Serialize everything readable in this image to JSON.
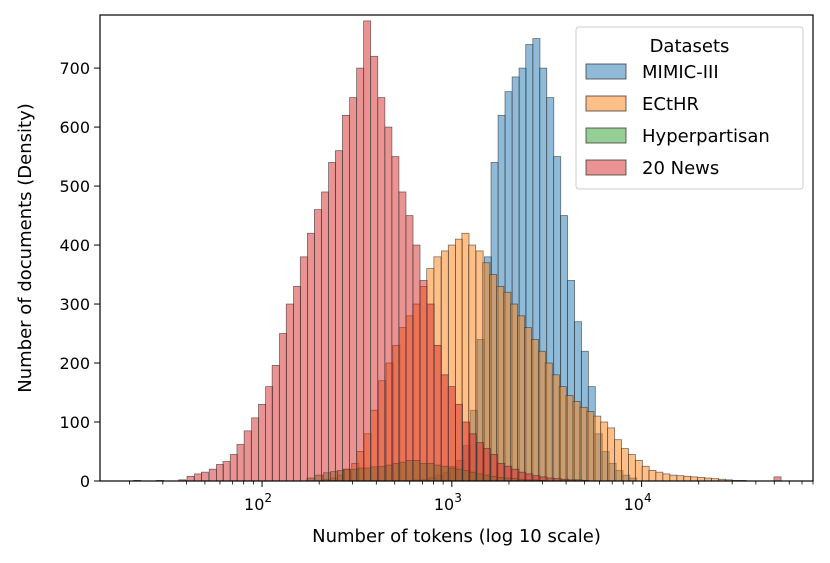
{
  "chart_data": {
    "type": "bar",
    "subtype": "overlapping-histogram",
    "xscale": "log",
    "xlabel": "Number of tokens (log 10 scale)",
    "ylabel": "Number of documents (Density)",
    "xlim": [
      14,
      80000
    ],
    "ylim": [
      0,
      790
    ],
    "yticks": [
      0,
      100,
      200,
      300,
      400,
      500,
      600,
      700
    ],
    "xticks": [
      100,
      1000,
      10000
    ],
    "xtick_labels": [
      {
        "base": "10",
        "exp": "2"
      },
      {
        "base": "10",
        "exp": "3"
      },
      {
        "base": "10",
        "exp": "4"
      }
    ],
    "grid": false,
    "legend": {
      "title": "Datasets",
      "placement": "top-right"
    },
    "series": [
      {
        "name": "MIMIC-III",
        "color": "#1f77b4",
        "bins": [
          [
            660,
            2
          ],
          [
            730,
            3
          ],
          [
            790,
            6
          ],
          [
            860,
            10
          ],
          [
            940,
            15
          ],
          [
            1020,
            25
          ],
          [
            1110,
            35
          ],
          [
            1200,
            60
          ],
          [
            1310,
            120
          ],
          [
            1420,
            240
          ],
          [
            1550,
            380
          ],
          [
            1680,
            540
          ],
          [
            1830,
            620
          ],
          [
            1990,
            660
          ],
          [
            2170,
            685
          ],
          [
            2360,
            700
          ],
          [
            2560,
            740
          ],
          [
            2790,
            750
          ],
          [
            3030,
            700
          ],
          [
            3300,
            650
          ],
          [
            3590,
            550
          ],
          [
            3900,
            450
          ],
          [
            4250,
            340
          ],
          [
            4620,
            270
          ],
          [
            5020,
            220
          ],
          [
            5460,
            160
          ],
          [
            5940,
            80
          ],
          [
            6460,
            50
          ],
          [
            7030,
            30
          ],
          [
            7640,
            18
          ],
          [
            8310,
            10
          ],
          [
            9040,
            5
          ]
        ]
      },
      {
        "name": "ECtHR",
        "color": "#ff7f0e",
        "bins": [
          [
            220,
            3
          ],
          [
            240,
            5
          ],
          [
            260,
            10
          ],
          [
            280,
            20
          ],
          [
            310,
            30
          ],
          [
            330,
            50
          ],
          [
            360,
            80
          ],
          [
            390,
            120
          ],
          [
            430,
            170
          ],
          [
            470,
            200
          ],
          [
            510,
            230
          ],
          [
            550,
            260
          ],
          [
            600,
            280
          ],
          [
            650,
            300
          ],
          [
            710,
            330
          ],
          [
            770,
            360
          ],
          [
            840,
            380
          ],
          [
            920,
            390
          ],
          [
            1000,
            400
          ],
          [
            1090,
            410
          ],
          [
            1180,
            420
          ],
          [
            1280,
            400
          ],
          [
            1400,
            390
          ],
          [
            1520,
            370
          ],
          [
            1650,
            350
          ],
          [
            1800,
            330
          ],
          [
            1960,
            320
          ],
          [
            2130,
            300
          ],
          [
            2320,
            280
          ],
          [
            2520,
            260
          ],
          [
            2740,
            240
          ],
          [
            2980,
            220
          ],
          [
            3240,
            200
          ],
          [
            3530,
            180
          ],
          [
            3840,
            160
          ],
          [
            4170,
            145
          ],
          [
            4540,
            135
          ],
          [
            4940,
            125
          ],
          [
            5370,
            118
          ],
          [
            5840,
            110
          ],
          [
            6350,
            100
          ],
          [
            6910,
            90
          ],
          [
            7510,
            70
          ],
          [
            8170,
            55
          ],
          [
            8890,
            45
          ],
          [
            9670,
            35
          ],
          [
            10500,
            25
          ],
          [
            11400,
            18
          ],
          [
            12400,
            15
          ],
          [
            13500,
            12
          ],
          [
            14700,
            10
          ],
          [
            16000,
            9
          ],
          [
            17400,
            8
          ],
          [
            18900,
            7
          ],
          [
            20600,
            6
          ],
          [
            22400,
            5
          ],
          [
            24400,
            4
          ],
          [
            26500,
            3
          ],
          [
            28800,
            2
          ],
          [
            31300,
            1
          ],
          [
            34100,
            1
          ]
        ]
      },
      {
        "name": "Hyperpartisan",
        "color": "#2ca02c",
        "bins": [
          [
            180,
            5
          ],
          [
            200,
            10
          ],
          [
            220,
            14
          ],
          [
            240,
            16
          ],
          [
            260,
            18
          ],
          [
            280,
            20
          ],
          [
            310,
            20
          ],
          [
            330,
            22
          ],
          [
            360,
            22
          ],
          [
            390,
            24
          ],
          [
            430,
            25
          ],
          [
            470,
            27
          ],
          [
            510,
            30
          ],
          [
            550,
            32
          ],
          [
            600,
            35
          ],
          [
            650,
            35
          ],
          [
            710,
            30
          ],
          [
            770,
            30
          ],
          [
            840,
            27
          ],
          [
            920,
            25
          ],
          [
            1000,
            22
          ],
          [
            1090,
            20
          ],
          [
            1180,
            18
          ],
          [
            1280,
            15
          ],
          [
            1400,
            12
          ],
          [
            1520,
            10
          ],
          [
            1650,
            8
          ],
          [
            1800,
            6
          ],
          [
            1960,
            5
          ],
          [
            2130,
            4
          ],
          [
            2320,
            3
          ],
          [
            2520,
            2
          ],
          [
            2740,
            2
          ],
          [
            2980,
            1
          ]
        ]
      },
      {
        "name": "20 News",
        "color": "#d62728",
        "bins": [
          [
            22,
            1
          ],
          [
            29,
            1
          ],
          [
            38,
            2
          ],
          [
            42,
            8
          ],
          [
            46,
            12
          ],
          [
            50,
            15
          ],
          [
            55,
            20
          ],
          [
            60,
            28
          ],
          [
            65,
            33
          ],
          [
            71,
            45
          ],
          [
            77,
            62
          ],
          [
            84,
            85
          ],
          [
            92,
            107
          ],
          [
            100,
            130
          ],
          [
            109,
            160
          ],
          [
            118,
            196
          ],
          [
            129,
            250
          ],
          [
            140,
            300
          ],
          [
            153,
            330
          ],
          [
            166,
            380
          ],
          [
            181,
            420
          ],
          [
            197,
            460
          ],
          [
            215,
            490
          ],
          [
            234,
            540
          ],
          [
            254,
            560
          ],
          [
            277,
            620
          ],
          [
            302,
            650
          ],
          [
            329,
            700
          ],
          [
            358,
            780
          ],
          [
            390,
            720
          ],
          [
            425,
            650
          ],
          [
            463,
            600
          ],
          [
            504,
            550
          ],
          [
            549,
            490
          ],
          [
            598,
            450
          ],
          [
            651,
            400
          ],
          [
            709,
            340
          ],
          [
            773,
            300
          ],
          [
            842,
            230
          ],
          [
            917,
            180
          ],
          [
            999,
            160
          ],
          [
            1090,
            130
          ],
          [
            1190,
            100
          ],
          [
            1290,
            80
          ],
          [
            1410,
            65
          ],
          [
            1530,
            55
          ],
          [
            1670,
            45
          ],
          [
            1820,
            30
          ],
          [
            1980,
            25
          ],
          [
            2160,
            20
          ],
          [
            2350,
            15
          ],
          [
            2560,
            12
          ],
          [
            2790,
            9
          ],
          [
            3040,
            7
          ],
          [
            3310,
            5
          ],
          [
            3610,
            4
          ],
          [
            3930,
            3
          ],
          [
            4280,
            2
          ],
          [
            4660,
            2
          ],
          [
            5070,
            1
          ],
          [
            52000,
            7
          ]
        ]
      }
    ]
  }
}
